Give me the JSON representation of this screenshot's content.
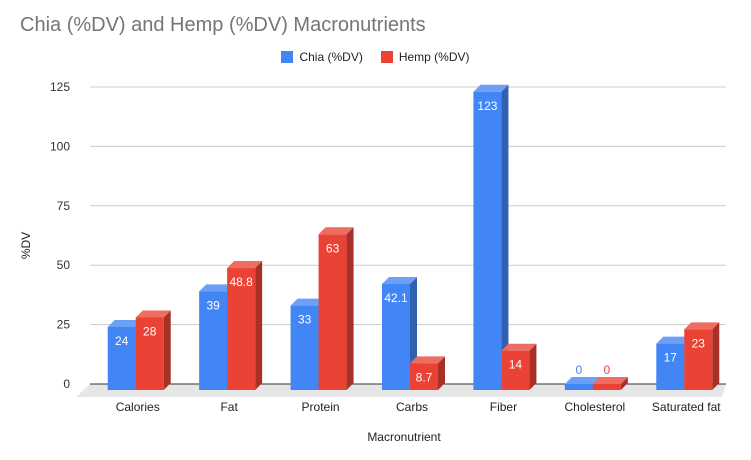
{
  "chart_data": {
    "type": "bar",
    "title": "Chia (%DV) and Hemp (%DV) Macronutrients",
    "xlabel": "Macronutrient",
    "ylabel": "%DV",
    "ylim": [
      0,
      125
    ],
    "yticks": [
      0,
      25,
      50,
      75,
      100,
      125
    ],
    "grid": true,
    "legend_position": "top",
    "categories": [
      "Calories",
      "Fat",
      "Protein",
      "Carbs",
      "Fiber",
      "Cholesterol",
      "Saturated fat"
    ],
    "series": [
      {
        "name": "Chia (%DV)",
        "color": "#4285f4",
        "values": [
          24,
          39,
          33,
          42.1,
          123,
          0,
          17
        ]
      },
      {
        "name": "Hemp (%DV)",
        "color": "#ea4335",
        "values": [
          28,
          48.8,
          63,
          8.7,
          14,
          0,
          23
        ]
      }
    ]
  }
}
